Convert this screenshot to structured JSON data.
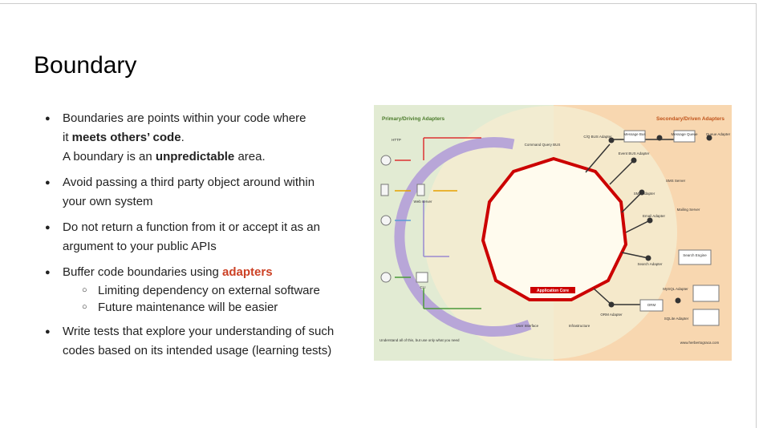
{
  "title": "Boundary",
  "bullets": [
    {
      "lines": [
        [
          {
            "text": "Boundaries are points within your code where"
          }
        ],
        [
          {
            "text": "it "
          },
          {
            "text": "meets others’ code",
            "bold": true
          },
          {
            "text": "."
          }
        ],
        [
          {
            "text": "A boundary is an "
          },
          {
            "text": "unpredictable",
            "bold": true
          },
          {
            "text": " area."
          }
        ]
      ]
    },
    {
      "lines": [
        [
          {
            "text": "Avoid passing a third party object around within"
          }
        ],
        [
          {
            "text": "your own system"
          }
        ]
      ]
    },
    {
      "lines": [
        [
          {
            "text": "Do not return a function from it or accept it as an"
          }
        ],
        [
          {
            "text": "argument to your public APIs"
          }
        ]
      ]
    },
    {
      "lines": [
        [
          {
            "text": "Buffer code boundaries using "
          },
          {
            "text": "adapters",
            "bold": true,
            "color": "#cc4125"
          }
        ]
      ],
      "sub": [
        "Limiting dependency on external software",
        "Future maintenance will be easier"
      ]
    },
    {
      "lines": [
        [
          {
            "text": "Write tests that explore your understanding of such"
          }
        ],
        [
          {
            "text": "codes based on its intended usage (learning tests)"
          }
        ]
      ]
    }
  ],
  "diagram": {
    "left_title": "Primary/Driving Adapters",
    "right_title": "Secondary/Driven Adapters",
    "core": "Application Core",
    "labels": [
      "HTTP",
      "Web server",
      "CLI",
      "Command Query BUS",
      "User Interface",
      "Infrastructure",
      "Understand all of this, but use only what you need",
      "C/Q BUS Adapter",
      "Message Bus",
      "Message Queue",
      "Queue Adapter",
      "Event BUS Adapter",
      "SMS Server",
      "SMS Adapter",
      "Mailing Server",
      "Email Adapter",
      "Search Engine",
      "Search Adapter",
      "MySQL Adapter",
      "ORM",
      "ORM Adapter",
      "SQLite Adapter",
      "www.herbertograca.com"
    ]
  }
}
